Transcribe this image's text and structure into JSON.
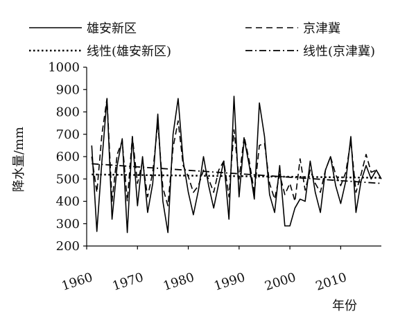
{
  "chart_data": {
    "type": "line",
    "title": "",
    "xlabel": "年份",
    "ylabel": "降水量/mm",
    "xlim": [
      1960,
      2018
    ],
    "ylim": [
      200,
      1000
    ],
    "x_ticks": [
      1960,
      1970,
      1980,
      1990,
      2000,
      2010
    ],
    "y_ticks": [
      200,
      300,
      400,
      500,
      600,
      700,
      800,
      900,
      1000
    ],
    "grid": false,
    "legend": {
      "placement": "top",
      "entries": [
        {
          "label": "雄安新区",
          "style": "solid"
        },
        {
          "label": "京津冀",
          "style": "dashed"
        },
        {
          "label": "线性(雄安新区)",
          "style": "dotted"
        },
        {
          "label": "线性(京津冀)",
          "style": "dashdot"
        }
      ]
    },
    "series": [
      {
        "name": "雄安新区",
        "style": "solid",
        "x": [
          1961,
          1962,
          1963,
          1964,
          1965,
          1966,
          1967,
          1968,
          1969,
          1970,
          1971,
          1972,
          1973,
          1974,
          1975,
          1976,
          1977,
          1978,
          1979,
          1980,
          1981,
          1982,
          1983,
          1984,
          1985,
          1986,
          1987,
          1988,
          1989,
          1990,
          1991,
          1992,
          1993,
          1994,
          1995,
          1996,
          1997,
          1998,
          1999,
          2000,
          2001,
          2002,
          2003,
          2004,
          2005,
          2006,
          2007,
          2008,
          2009,
          2010,
          2011,
          2012,
          2013,
          2014,
          2015,
          2016,
          2017,
          2018
        ],
        "y": [
          650,
          265,
          580,
          860,
          320,
          560,
          680,
          260,
          690,
          380,
          600,
          350,
          480,
          790,
          400,
          260,
          700,
          860,
          580,
          440,
          340,
          450,
          600,
          470,
          370,
          480,
          580,
          320,
          870,
          420,
          680,
          560,
          410,
          840,
          690,
          430,
          350,
          560,
          290,
          290,
          370,
          410,
          400,
          580,
          440,
          350,
          540,
          600,
          470,
          390,
          490,
          690,
          350,
          490,
          560,
          500,
          540,
          500
        ]
      },
      {
        "name": "京津冀",
        "style": "dashed",
        "x": [
          1961,
          1962,
          1963,
          1964,
          1965,
          1966,
          1967,
          1968,
          1969,
          1970,
          1971,
          1972,
          1973,
          1974,
          1975,
          1976,
          1977,
          1978,
          1979,
          1980,
          1981,
          1982,
          1983,
          1984,
          1985,
          1986,
          1987,
          1988,
          1989,
          1990,
          1991,
          1992,
          1993,
          1994,
          1995,
          1996,
          1997,
          1998,
          1999,
          2000,
          2001,
          2002,
          2003,
          2004,
          2005,
          2006,
          2007,
          2008,
          2009,
          2010,
          2011,
          2012,
          2013,
          2014,
          2015,
          2016,
          2017,
          2018
        ],
        "y": [
          600,
          440,
          700,
          860,
          400,
          610,
          670,
          400,
          690,
          480,
          580,
          420,
          530,
          750,
          460,
          380,
          640,
          760,
          560,
          510,
          440,
          470,
          540,
          500,
          440,
          540,
          580,
          420,
          720,
          500,
          690,
          580,
          440,
          650,
          660,
          480,
          410,
          520,
          430,
          480,
          400,
          590,
          450,
          540,
          480,
          440,
          540,
          600,
          520,
          470,
          530,
          670,
          440,
          520,
          610,
          530,
          540,
          500
        ]
      },
      {
        "name": "线性(雄安新区)",
        "style": "dotted",
        "x": [
          1961,
          2018
        ],
        "y": [
          520,
          505
        ]
      },
      {
        "name": "线性(京津冀)",
        "style": "dashdot",
        "x": [
          1961,
          2018
        ],
        "y": [
          568,
          480
        ]
      }
    ]
  }
}
